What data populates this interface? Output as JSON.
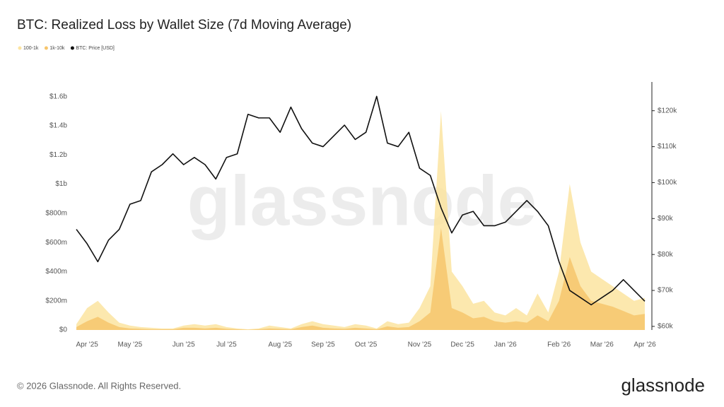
{
  "chart_data": {
    "type": "area-line",
    "title": "BTC: Realized Loss by Wallet Size (7d Moving Average)",
    "watermark": "glassnode",
    "footer": "© 2026 Glassnode. All Rights Reserved.",
    "logo": "glassnode",
    "categories": [
      null,
      "Apr '25",
      null,
      null,
      null,
      "May '25",
      null,
      null,
      null,
      null,
      "Jun '25",
      null,
      null,
      null,
      "Jul '25",
      null,
      null,
      null,
      null,
      "Aug '25",
      null,
      null,
      null,
      "Sep '25",
      null,
      null,
      null,
      "Oct '25",
      null,
      null,
      null,
      null,
      "Nov '25",
      null,
      null,
      null,
      "Dec '25",
      null,
      null,
      null,
      "Jan '26",
      null,
      null,
      null,
      null,
      "Feb '26",
      null,
      null,
      null,
      "Mar '26",
      null,
      null,
      null,
      "Apr '26"
    ],
    "series": [
      {
        "name": "100-1k",
        "color": "#fce4a0",
        "values": [
          40000000.0,
          150000000.0,
          200000000.0,
          120000000.0,
          50000000.0,
          30000000.0,
          20000000.0,
          15000000.0,
          10000000.0,
          10000000.0,
          30000000.0,
          40000000.0,
          30000000.0,
          40000000.0,
          20000000.0,
          10000000.0,
          5000000.0,
          10000000.0,
          30000000.0,
          20000000.0,
          10000000.0,
          40000000.0,
          60000000.0,
          40000000.0,
          30000000.0,
          20000000.0,
          40000000.0,
          30000000.0,
          10000000.0,
          60000000.0,
          40000000.0,
          50000000.0,
          150000000.0,
          300000000.0,
          1500000000.0,
          400000000.0,
          300000000.0,
          180000000.0,
          200000000.0,
          120000000.0,
          100000000.0,
          150000000.0,
          100000000.0,
          250000000.0,
          120000000.0,
          400000000.0,
          1000000000.0,
          600000000.0,
          400000000.0,
          350000000.0,
          300000000.0,
          250000000.0,
          200000000.0,
          220000000.0
        ]
      },
      {
        "name": "1k-10k",
        "color": "#f6c56c",
        "values": [
          20000000.0,
          60000000.0,
          90000000.0,
          50000000.0,
          20000000.0,
          10000000.0,
          8000000.0,
          5000000.0,
          5000000.0,
          5000000.0,
          15000000.0,
          15000000.0,
          10000000.0,
          15000000.0,
          8000000.0,
          5000000.0,
          2000000.0,
          5000000.0,
          10000000.0,
          8000000.0,
          5000000.0,
          20000000.0,
          30000000.0,
          15000000.0,
          10000000.0,
          8000000.0,
          15000000.0,
          10000000.0,
          5000000.0,
          25000000.0,
          15000000.0,
          20000000.0,
          60000000.0,
          120000000.0,
          700000000.0,
          150000000.0,
          120000000.0,
          80000000.0,
          90000000.0,
          60000000.0,
          50000000.0,
          60000000.0,
          50000000.0,
          100000000.0,
          60000000.0,
          200000000.0,
          500000000.0,
          300000000.0,
          200000000.0,
          180000000.0,
          160000000.0,
          130000000.0,
          100000000.0,
          110000000.0
        ]
      },
      {
        "name": "BTC: Price [USD]",
        "color": "#111111",
        "axis": "y2",
        "values": [
          87000,
          83000,
          78000,
          84000,
          87000,
          94000,
          95000,
          103000,
          105000,
          108000,
          105000,
          107000,
          105000,
          101000,
          107000,
          108000,
          119000,
          118000,
          118000,
          114000,
          121000,
          115000,
          111000,
          110000,
          113000,
          116000,
          112000,
          114000,
          124000,
          111000,
          110000,
          114000,
          104000,
          102000,
          93000,
          86000,
          91000,
          92000,
          88000,
          88000,
          89000,
          92000,
          95000,
          92000,
          88000,
          78000,
          70000,
          68000,
          66000,
          68000,
          70000,
          73000,
          70000,
          67000
        ]
      }
    ],
    "ylim": [
      0,
      1700000000
    ],
    "yticks": [
      {
        "value": 0,
        "label": "$0"
      },
      {
        "value": 200000000,
        "label": "$200m"
      },
      {
        "value": 400000000,
        "label": "$400m"
      },
      {
        "value": 600000000,
        "label": "$600m"
      },
      {
        "value": 800000000,
        "label": "$800m"
      },
      {
        "value": 1000000000,
        "label": "$1b"
      },
      {
        "value": 1200000000,
        "label": "$1.2b"
      },
      {
        "value": 1400000000,
        "label": "$1.4b"
      },
      {
        "value": 1600000000,
        "label": "$1.6b"
      }
    ],
    "y2lim": [
      59000,
      128000
    ],
    "y2ticks": [
      {
        "value": 60000,
        "label": "$60k"
      },
      {
        "value": 70000,
        "label": "$70k"
      },
      {
        "value": 80000,
        "label": "$80k"
      },
      {
        "value": 90000,
        "label": "$90k"
      },
      {
        "value": 100000,
        "label": "$100k"
      },
      {
        "value": 110000,
        "label": "$110k"
      },
      {
        "value": 120000,
        "label": "$120k"
      }
    ],
    "grid": false
  }
}
